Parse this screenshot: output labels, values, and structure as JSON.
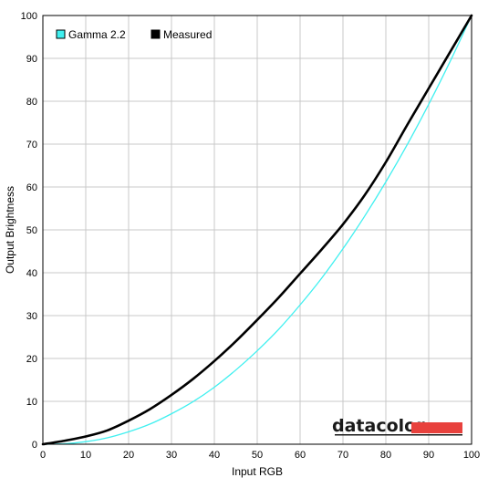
{
  "chart_data": {
    "type": "line",
    "title": "",
    "xlabel": "Input RGB",
    "ylabel": "Output Brightness",
    "xlim": [
      0,
      100
    ],
    "ylim": [
      0,
      100
    ],
    "x_ticks": [
      0,
      10,
      20,
      30,
      40,
      50,
      60,
      70,
      80,
      90,
      100
    ],
    "y_ticks": [
      0,
      10,
      20,
      30,
      40,
      50,
      60,
      70,
      80,
      90,
      100
    ],
    "grid": true,
    "legend_position": "top-left",
    "series": [
      {
        "name": "Gamma 2.2",
        "color": "#40f0f0",
        "x": [
          0,
          5,
          10,
          15,
          20,
          25,
          30,
          35,
          40,
          45,
          50,
          55,
          60,
          65,
          70,
          75,
          80,
          85,
          90,
          95,
          100
        ],
        "y": [
          0,
          0.1,
          0.6,
          1.5,
          2.9,
          4.7,
          7.1,
          9.9,
          13.3,
          17.3,
          21.8,
          26.8,
          32.5,
          38.7,
          45.6,
          53.1,
          61.2,
          69.9,
          79.3,
          89.3,
          100
        ]
      },
      {
        "name": "Measured",
        "color": "#000000",
        "x": [
          0,
          5,
          10,
          15,
          20,
          25,
          30,
          35,
          40,
          45,
          50,
          55,
          60,
          65,
          70,
          75,
          80,
          85,
          90,
          95,
          100
        ],
        "y": [
          0,
          0.8,
          1.8,
          3.2,
          5.5,
          8.2,
          11.5,
          15.2,
          19.4,
          24.0,
          29.0,
          34.2,
          39.8,
          45.4,
          51.3,
          58.0,
          65.8,
          74.5,
          83.0,
          91.5,
          100
        ]
      }
    ]
  },
  "brand": {
    "name": "datacolor",
    "accent_color": "#e8413d"
  }
}
